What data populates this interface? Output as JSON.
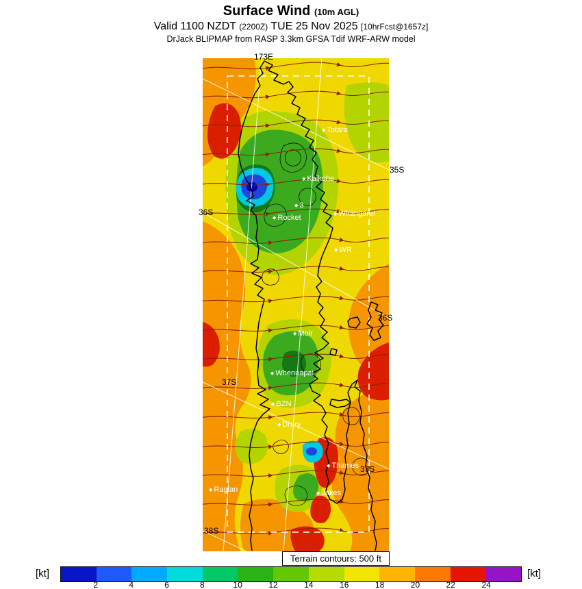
{
  "header": {
    "title": "Surface Wind",
    "title_suffix": "(10m AGL)",
    "valid_prefix": "Valid 1100 NZDT",
    "valid_zulu": "(2200Z)",
    "valid_date": "TUE 25 Nov 2025",
    "forecast_tag": "[10hrFcst@1657z]",
    "model_line": "DrJack BLIPMAP from RASP 3.3km GFSA Tdif WRF-ARW model"
  },
  "map": {
    "lon_label": "173E",
    "lat_labels": [
      {
        "text": "35S",
        "side": "right"
      },
      {
        "text": "36S",
        "side": "left"
      },
      {
        "text": "36S",
        "side": "right"
      },
      {
        "text": "37S",
        "side": "left"
      },
      {
        "text": "37S",
        "side": "right"
      },
      {
        "text": "38S",
        "side": "left"
      }
    ],
    "places": [
      {
        "name": "Totara"
      },
      {
        "name": "Kaikohe"
      },
      {
        "name": "3"
      },
      {
        "name": "Rocket"
      },
      {
        "name": "Whangarei"
      },
      {
        "name": "WR"
      },
      {
        "name": "Moir"
      },
      {
        "name": "Whenuapai"
      },
      {
        "name": "BZN"
      },
      {
        "name": "Drury"
      },
      {
        "name": "Thames"
      },
      {
        "name": "Raglan"
      },
      {
        "name": "Jakes"
      }
    ],
    "terrain_note": "Terrain contours: 500 ft",
    "marker_glyph": "◆"
  },
  "colorbar": {
    "unit_left": "[kt]",
    "unit_right": "[kt]",
    "tick_labels": [
      "2",
      "4",
      "6",
      "8",
      "10",
      "12",
      "14",
      "16",
      "18",
      "20",
      "22",
      "24"
    ],
    "segment_colors": [
      "#0a14c8",
      "#1e5aff",
      "#00aaff",
      "#00dcdc",
      "#00c864",
      "#28b414",
      "#64c800",
      "#b4dc00",
      "#f0e600",
      "#ffb400",
      "#ff7800",
      "#e61400",
      "#9614c8"
    ]
  }
}
